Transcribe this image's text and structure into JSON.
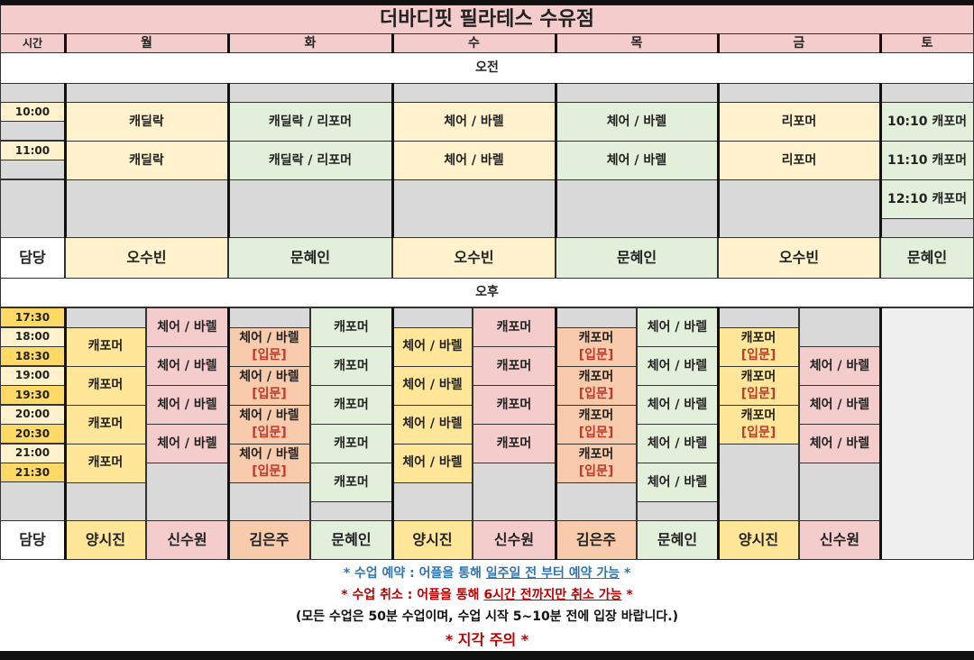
{
  "title": "더바디핏 필라테스 수유점",
  "header": {
    "time_label": "시간",
    "days": [
      "월",
      "화",
      "수",
      "목",
      "금",
      "토"
    ]
  },
  "colors": {
    "title_bg": "#f4cccc",
    "yellow": "#fff2cc",
    "green": "#e2efda",
    "pink": "#f4cccc",
    "salmon": "#f8cbad",
    "gold": "#ffe699",
    "gray": "#d9d9d9",
    "time_dark": "#ffd966",
    "sat_empty": "#f0f0f0",
    "blue_note": "#2e75b6",
    "red_note": "#c00000"
  },
  "am": {
    "section_label": "오전",
    "times": [
      "10:00",
      "11:00"
    ],
    "instructor_label": "담당",
    "days": [
      {
        "color": "yellow",
        "slots": [
          "캐딜락",
          "캐딜락"
        ],
        "instructor": "오수빈"
      },
      {
        "color": "green",
        "slots": [
          "캐딜락 / 리포머",
          "캐딜락 / 리포머"
        ],
        "instructor": "문혜인"
      },
      {
        "color": "yellow",
        "slots": [
          "체어 / 바렐",
          "체어 / 바렐"
        ],
        "instructor": "오수빈"
      },
      {
        "color": "green",
        "slots": [
          "체어 / 바렐",
          "체어 / 바렐"
        ],
        "instructor": "문혜인"
      },
      {
        "color": "yellow",
        "slots": [
          "리포머",
          "리포머"
        ],
        "instructor": "오수빈"
      },
      {
        "color": "green",
        "slots": [
          "10:10 캐포머",
          "11:10 캐포머",
          "12:10 캐포머"
        ],
        "instructor": "문혜인"
      }
    ]
  },
  "pm": {
    "section_label": "오후",
    "times": [
      "17:30",
      "18:00",
      "18:30",
      "19:00",
      "19:30",
      "20:00",
      "20:30",
      "21:00",
      "21:30"
    ],
    "instructor_label": "담당",
    "columns": [
      {
        "day": "월",
        "color": "gold",
        "instructor": "양시진",
        "blocks": [
          {
            "start": "18:00",
            "end": "19:00",
            "label": "캐포머"
          },
          {
            "start": "19:00",
            "end": "20:00",
            "label": "캐포머"
          },
          {
            "start": "20:00",
            "end": "21:00",
            "label": "캐포머"
          },
          {
            "start": "21:00",
            "end": "22:00",
            "label": "캐포머"
          }
        ]
      },
      {
        "day": "월",
        "color": "pink",
        "instructor": "신수원",
        "blocks": [
          {
            "start": "17:30",
            "end": "18:30",
            "label": "체어 / 바렐"
          },
          {
            "start": "18:30",
            "end": "19:30",
            "label": "체어 / 바렐"
          },
          {
            "start": "19:30",
            "end": "20:30",
            "label": "체어 / 바렐"
          },
          {
            "start": "20:30",
            "end": "21:30",
            "label": "체어 / 바렐"
          }
        ]
      },
      {
        "day": "화",
        "color": "salmon",
        "instructor": "김은주",
        "blocks": [
          {
            "start": "18:00",
            "end": "19:00",
            "label": "체어 / 바렐",
            "level": "[입문]"
          },
          {
            "start": "19:00",
            "end": "20:00",
            "label": "체어 / 바렐",
            "level": "[입문]"
          },
          {
            "start": "20:00",
            "end": "21:00",
            "label": "체어 / 바렐",
            "level": "[입문]"
          },
          {
            "start": "21:00",
            "end": "22:00",
            "label": "체어 / 바렐",
            "level": "[입문]"
          }
        ]
      },
      {
        "day": "화",
        "color": "green",
        "instructor": "문혜인",
        "blocks": [
          {
            "start": "17:30",
            "end": "18:30",
            "label": "캐포머"
          },
          {
            "start": "18:30",
            "end": "19:30",
            "label": "캐포머"
          },
          {
            "start": "19:30",
            "end": "20:30",
            "label": "캐포머"
          },
          {
            "start": "20:30",
            "end": "21:30",
            "label": "캐포머"
          },
          {
            "start": "21:30",
            "end": "22:30",
            "label": "캐포머"
          }
        ]
      },
      {
        "day": "수",
        "color": "gold",
        "instructor": "양시진",
        "blocks": [
          {
            "start": "18:00",
            "end": "19:00",
            "label": "체어 / 바렐"
          },
          {
            "start": "19:00",
            "end": "20:00",
            "label": "체어 / 바렐"
          },
          {
            "start": "20:00",
            "end": "21:00",
            "label": "체어 / 바렐"
          },
          {
            "start": "21:00",
            "end": "22:00",
            "label": "체어 / 바렐"
          }
        ]
      },
      {
        "day": "수",
        "color": "pink",
        "instructor": "신수원",
        "blocks": [
          {
            "start": "17:30",
            "end": "18:30",
            "label": "캐포머"
          },
          {
            "start": "18:30",
            "end": "19:30",
            "label": "캐포머"
          },
          {
            "start": "19:30",
            "end": "20:30",
            "label": "캐포머"
          },
          {
            "start": "20:30",
            "end": "21:30",
            "label": "캐포머"
          }
        ]
      },
      {
        "day": "목",
        "color": "salmon",
        "instructor": "김은주",
        "blocks": [
          {
            "start": "18:00",
            "end": "19:00",
            "label": "캐포머",
            "level": "[입문]"
          },
          {
            "start": "19:00",
            "end": "20:00",
            "label": "캐포머",
            "level": "[입문]"
          },
          {
            "start": "20:00",
            "end": "21:00",
            "label": "캐포머",
            "level": "[입문]"
          },
          {
            "start": "21:00",
            "end": "22:00",
            "label": "캐포머",
            "level": "[입문]"
          }
        ]
      },
      {
        "day": "목",
        "color": "green",
        "instructor": "문혜인",
        "blocks": [
          {
            "start": "17:30",
            "end": "18:30",
            "label": "체어 / 바렐"
          },
          {
            "start": "18:30",
            "end": "19:30",
            "label": "체어 / 바렐"
          },
          {
            "start": "19:30",
            "end": "20:30",
            "label": "체어 / 바렐"
          },
          {
            "start": "20:30",
            "end": "21:30",
            "label": "체어 / 바렐"
          },
          {
            "start": "21:30",
            "end": "22:30",
            "label": "체어 / 바렐"
          }
        ]
      },
      {
        "day": "금",
        "color": "gold",
        "instructor": "양시진",
        "blocks": [
          {
            "start": "18:00",
            "end": "19:00",
            "label": "캐포머",
            "level": "[입문]"
          },
          {
            "start": "19:00",
            "end": "20:00",
            "label": "캐포머",
            "level": "[입문]"
          },
          {
            "start": "20:00",
            "end": "21:00",
            "label": "캐포머",
            "level": "[입문]"
          }
        ]
      },
      {
        "day": "금",
        "color": "pink",
        "instructor": "신수원",
        "blocks": [
          {
            "start": "18:30",
            "end": "19:30",
            "label": "체어 / 바렐"
          },
          {
            "start": "19:30",
            "end": "20:30",
            "label": "체어 / 바렐"
          },
          {
            "start": "20:30",
            "end": "21:30",
            "label": "체어 / 바렐"
          }
        ]
      }
    ]
  },
  "notes": {
    "reserve_prefix": "* 수업 예약 : 어플을 통해 ",
    "reserve_underlined": "일주일 전 부터 예약 가능",
    "reserve_suffix": " *",
    "cancel_prefix": "* 수업 취소 : 어플을 통해 ",
    "cancel_underlined": "6시간 전까지만 취소 가능",
    "cancel_suffix": " *",
    "info": "(모든 수업은 50분 수업이며, 수업 시작  5~10분 전에 입장 바랍니다.)",
    "late": "* 지각 주의 *"
  }
}
